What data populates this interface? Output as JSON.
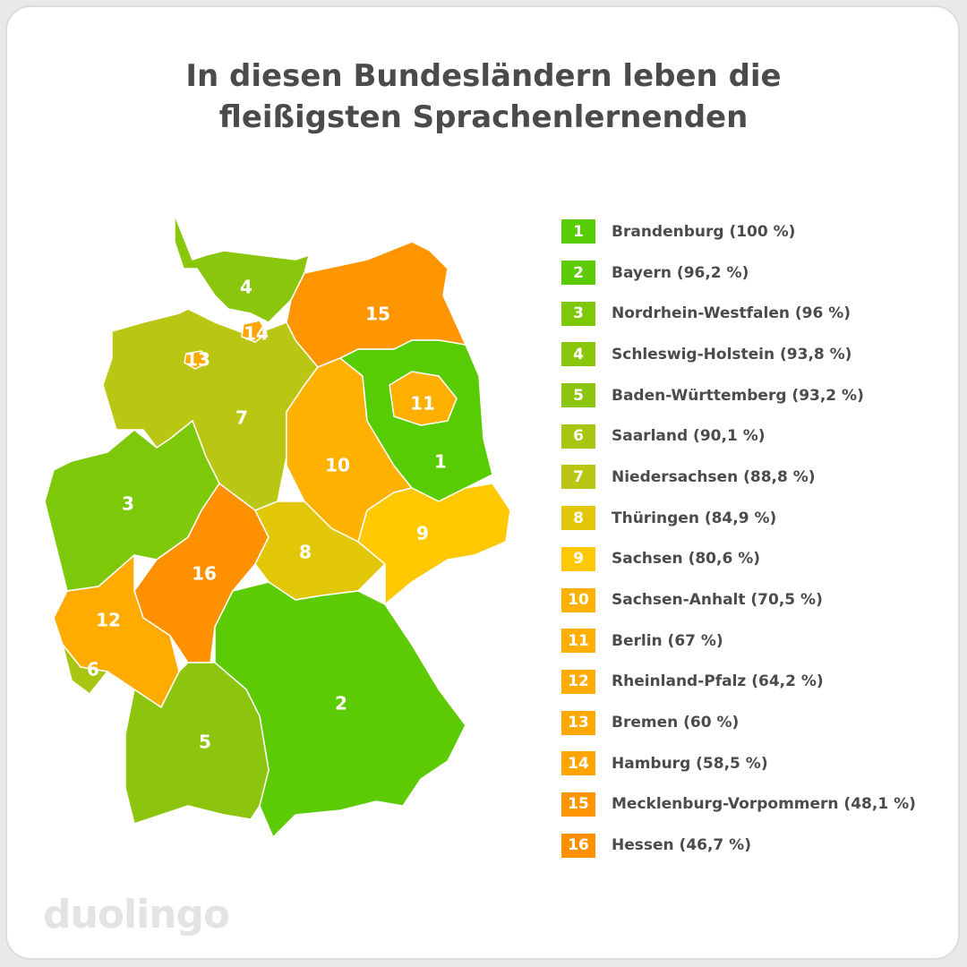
{
  "title": {
    "line1": "In diesen Bundesländern leben die",
    "line2": "fleißigsten Sprachenlernenden"
  },
  "legend": [
    {
      "rank": "1",
      "label": "Brandenburg (100 %)",
      "color": "#58cc02"
    },
    {
      "rank": "2",
      "label": "Bayern (96,2 %)",
      "color": "#5ccb04"
    },
    {
      "rank": "3",
      "label": "Nordrhein-Westfalen (96 %)",
      "color": "#7cc809"
    },
    {
      "rank": "4",
      "label": "Schleswig-Holstein (93,8 %)",
      "color": "#89c60c"
    },
    {
      "rank": "5",
      "label": "Baden-Württemberg (93,2 %)",
      "color": "#8dc50e"
    },
    {
      "rank": "6",
      "label": "Saarland (90,1 %)",
      "color": "#a8c511"
    },
    {
      "rank": "7",
      "label": "Niedersachsen (88,8 %)",
      "color": "#b9c614"
    },
    {
      "rank": "8",
      "label": "Thüringen (84,9 %)",
      "color": "#e1c708"
    },
    {
      "rank": "9",
      "label": "Sachsen (80,6 %)",
      "color": "#ffc800"
    },
    {
      "rank": "10",
      "label": "Sachsen-Anhalt (70,5 %)",
      "color": "#ffb100"
    },
    {
      "rank": "11",
      "label": "Berlin (67 %)",
      "color": "#ffaf00"
    },
    {
      "rank": "12",
      "label": "Rheinland-Pfalz (64,2 %)",
      "color": "#ffab00"
    },
    {
      "rank": "13",
      "label": "Bremen (60 %)",
      "color": "#ffa800"
    },
    {
      "rank": "14",
      "label": "Hamburg (58,5 %)",
      "color": "#ffa500"
    },
    {
      "rank": "15",
      "label": "Mecklenburg-Vorpommern (48,1 %)",
      "color": "#ff9600"
    },
    {
      "rank": "16",
      "label": "Hessen (46,7 %)",
      "color": "#ff9100"
    }
  ],
  "logo": "duolingo"
}
